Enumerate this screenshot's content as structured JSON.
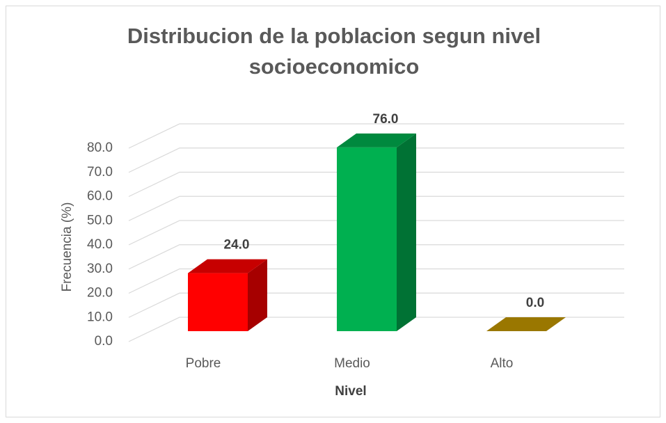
{
  "chart_data": {
    "type": "bar3d",
    "title": "Distribucion de la poblacion segun nivel socioeconomico",
    "x_label": "Nivel",
    "y_label": "Frecuencia (%)",
    "categories": [
      "Pobre",
      "Medio",
      "Alto"
    ],
    "values": [
      24,
      76,
      0
    ],
    "value_labels": [
      "24.0",
      "76.0",
      "0.0"
    ],
    "colors": [
      "#ff0000",
      "#00b050",
      "#c59900"
    ],
    "ylim": [
      0,
      80
    ],
    "yticks": [
      {
        "value": 0,
        "label": "0.0"
      },
      {
        "value": 10,
        "label": "10.0"
      },
      {
        "value": 20,
        "label": "20.0"
      },
      {
        "value": 30,
        "label": "30.0"
      },
      {
        "value": 40,
        "label": "40.0"
      },
      {
        "value": 50,
        "label": "50.0"
      },
      {
        "value": 60,
        "label": "60.0"
      },
      {
        "value": 70,
        "label": "70.0"
      },
      {
        "value": 80,
        "label": "80.0"
      }
    ],
    "grid": true
  }
}
